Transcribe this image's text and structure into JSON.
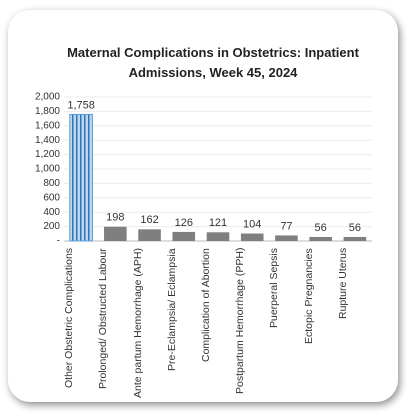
{
  "chart_data": {
    "type": "bar",
    "title": "Maternal Complications in Obstetrics: Inpatient Admissions, Week 45, 2024",
    "categories": [
      "Other Obstetric Complications",
      "Prolonged/ Obstructed Labour",
      "Ante partum Hemorrhage (APH)",
      "Pre-Eclampsia/ Eclampsia",
      "Complication of Abortion",
      "Postpartum Hemorrhage (PPH)",
      "Puerperal Sepsis",
      "Ectopic Pregnancies",
      "Rupture Uterus"
    ],
    "values": [
      1758,
      198,
      162,
      126,
      121,
      104,
      77,
      56,
      56
    ],
    "value_labels": [
      "1,758",
      "198",
      "162",
      "126",
      "121",
      "104",
      "77",
      "56",
      "56"
    ],
    "colors": [
      "#9dc3e6",
      "#7f7f7f",
      "#7f7f7f",
      "#7f7f7f",
      "#7f7f7f",
      "#7f7f7f",
      "#7f7f7f",
      "#7f7f7f",
      "#7f7f7f"
    ],
    "ylim": [
      0,
      2000
    ],
    "yticks": [
      {
        "value": 0,
        "label": "-"
      },
      200,
      400,
      600,
      800,
      {
        "value": 1000,
        "label": "1,000"
      },
      {
        "value": 1200,
        "label": "1,200"
      },
      {
        "value": 1400,
        "label": "1,400"
      },
      {
        "value": 1600,
        "label": "1,600"
      },
      {
        "value": 1800,
        "label": "1,800"
      },
      {
        "value": 2000,
        "label": "2,000"
      }
    ],
    "grid": true
  }
}
